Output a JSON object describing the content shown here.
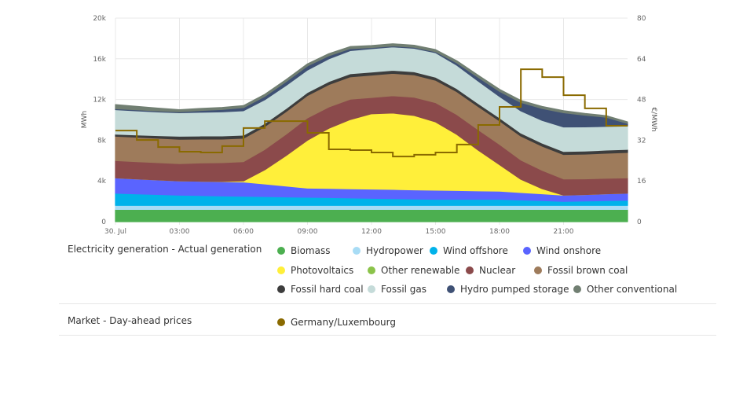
{
  "chart_data": {
    "type": "area",
    "stacked": true,
    "title": "",
    "x": [
      "00:00",
      "01:00",
      "02:00",
      "03:00",
      "04:00",
      "05:00",
      "06:00",
      "07:00",
      "08:00",
      "09:00",
      "10:00",
      "11:00",
      "12:00",
      "13:00",
      "14:00",
      "15:00",
      "16:00",
      "17:00",
      "18:00",
      "19:00",
      "20:00",
      "21:00",
      "22:00",
      "23:00",
      "24:00"
    ],
    "xticks": [
      "30. Jul",
      "03:00",
      "06:00",
      "09:00",
      "12:00",
      "15:00",
      "18:00",
      "21:00"
    ],
    "ylabel": "MWh",
    "ylim": [
      0,
      20000
    ],
    "yticks": [
      "0",
      "4k",
      "8k",
      "12k",
      "16k",
      "20k"
    ],
    "y2label": "€/MWh",
    "y2lim": [
      0,
      80
    ],
    "y2ticks": [
      "0",
      "16",
      "32",
      "48",
      "64",
      "80"
    ],
    "grid": true,
    "series": [
      {
        "name": "Biomass",
        "color": "#4caf50",
        "values": [
          1200,
          1200,
          1200,
          1200,
          1200,
          1200,
          1200,
          1200,
          1200,
          1200,
          1200,
          1200,
          1200,
          1200,
          1200,
          1200,
          1200,
          1200,
          1200,
          1200,
          1200,
          1200,
          1200,
          1200,
          1200
        ]
      },
      {
        "name": "Hydropower",
        "color": "#a8dcf5",
        "values": [
          400,
          400,
          400,
          400,
          400,
          400,
          400,
          400,
          400,
          400,
          400,
          400,
          400,
          400,
          400,
          400,
          400,
          400,
          400,
          400,
          400,
          400,
          400,
          400,
          400
        ]
      },
      {
        "name": "Wind offshore",
        "color": "#00b2ea",
        "values": [
          1200,
          1130,
          1070,
          1000,
          970,
          930,
          900,
          870,
          830,
          800,
          770,
          730,
          700,
          670,
          630,
          600,
          600,
          600,
          600,
          530,
          470,
          400,
          430,
          470,
          500
        ]
      },
      {
        "name": "Wind onshore",
        "color": "#5a64ff",
        "values": [
          1500,
          1470,
          1430,
          1400,
          1400,
          1400,
          1400,
          1230,
          1070,
          900,
          900,
          900,
          900,
          900,
          900,
          900,
          870,
          830,
          800,
          730,
          670,
          600,
          630,
          670,
          700
        ]
      },
      {
        "name": "Other renewable",
        "color": "#8bc34a",
        "values": [
          0,
          0,
          0,
          0,
          0,
          0,
          0,
          0,
          0,
          0,
          0,
          0,
          0,
          0,
          0,
          0,
          0,
          0,
          0,
          0,
          0,
          0,
          0,
          0,
          0
        ]
      },
      {
        "name": "Photovoltaics",
        "color": "#ffef3a",
        "values": [
          0,
          0,
          0,
          0,
          0,
          20,
          100,
          1400,
          3000,
          4700,
          5900,
          6800,
          7400,
          7500,
          7300,
          6700,
          5500,
          4000,
          2600,
          1300,
          500,
          0,
          0,
          0,
          0
        ]
      },
      {
        "name": "Nuclear",
        "color": "#8b4a4b",
        "values": [
          1700,
          1700,
          1700,
          1700,
          1800,
          1850,
          1900,
          2000,
          2100,
          2200,
          2100,
          2000,
          1600,
          1700,
          1800,
          1900,
          1950,
          2000,
          2000,
          1900,
          1800,
          1600,
          1550,
          1520,
          1500
        ]
      },
      {
        "name": "Fossil brown coal",
        "color": "#9e7b5b",
        "values": [
          2400,
          2400,
          2400,
          2400,
          2350,
          2320,
          2300,
          2250,
          2220,
          2200,
          2200,
          2200,
          2200,
          2200,
          2200,
          2200,
          2250,
          2280,
          2300,
          2350,
          2380,
          2400,
          2430,
          2470,
          2500
        ]
      },
      {
        "name": "Fossil hard coal",
        "color": "#3d3d3d",
        "values": [
          200,
          220,
          250,
          300,
          300,
          300,
          300,
          300,
          300,
          300,
          300,
          300,
          300,
          300,
          300,
          300,
          300,
          300,
          300,
          300,
          300,
          300,
          300,
          300,
          300
        ]
      },
      {
        "name": "Fossil gas",
        "color": "#c5dbd9",
        "values": [
          2400,
          2370,
          2330,
          2300,
          2330,
          2370,
          2400,
          2330,
          2270,
          2200,
          2230,
          2270,
          2300,
          2300,
          2300,
          2400,
          2300,
          2200,
          2100,
          2170,
          2230,
          2400,
          2370,
          2330,
          2300
        ]
      },
      {
        "name": "Hydro pumped storage",
        "color": "#3f5175",
        "values": [
          100,
          100,
          100,
          100,
          170,
          230,
          300,
          330,
          370,
          400,
          300,
          200,
          100,
          100,
          100,
          100,
          230,
          370,
          500,
          830,
          1170,
          1400,
          1150,
          900,
          250
        ]
      },
      {
        "name": "Other conventional",
        "color": "#717f72",
        "values": [
          400,
          330,
          270,
          200,
          200,
          200,
          200,
          200,
          200,
          200,
          200,
          200,
          200,
          200,
          200,
          200,
          200,
          200,
          200,
          200,
          200,
          200,
          170,
          150,
          150
        ]
      }
    ],
    "price_series": {
      "name": "Germany/Luxembourg",
      "color": "#8a6a00",
      "axis": "right",
      "step": true,
      "values": [
        35.8,
        32.1,
        29.3,
        27.5,
        27.2,
        29.7,
        36.8,
        39.5,
        39.5,
        34.9,
        28.4,
        28.1,
        27.2,
        25.6,
        26.3,
        27.2,
        30.3,
        38.0,
        45.1,
        59.9,
        56.8,
        49.7,
        44.5,
        37.7
      ]
    }
  },
  "legend": {
    "generation": {
      "title": "Electricity generation - Actual generation",
      "items": [
        {
          "label": "Biomass",
          "color": "#4caf50"
        },
        {
          "label": "Hydropower",
          "color": "#a8dcf5"
        },
        {
          "label": "Wind offshore",
          "color": "#00b2ea"
        },
        {
          "label": "Wind onshore",
          "color": "#5a64ff"
        },
        {
          "label": "Photovoltaics",
          "color": "#ffef3a"
        },
        {
          "label": "Other renewable",
          "color": "#8bc34a"
        },
        {
          "label": "Nuclear",
          "color": "#8b4a4b"
        },
        {
          "label": "Fossil brown coal",
          "color": "#9e7b5b"
        },
        {
          "label": "Fossil hard coal",
          "color": "#3d3d3d"
        },
        {
          "label": "Fossil gas",
          "color": "#c5dbd9"
        },
        {
          "label": "Hydro pumped storage",
          "color": "#3f5175"
        },
        {
          "label": "Other conventional",
          "color": "#717f72"
        }
      ]
    },
    "market": {
      "title": "Market - Day-ahead prices",
      "items": [
        {
          "label": "Germany/Luxembourg",
          "color": "#8a6a00"
        }
      ]
    }
  }
}
